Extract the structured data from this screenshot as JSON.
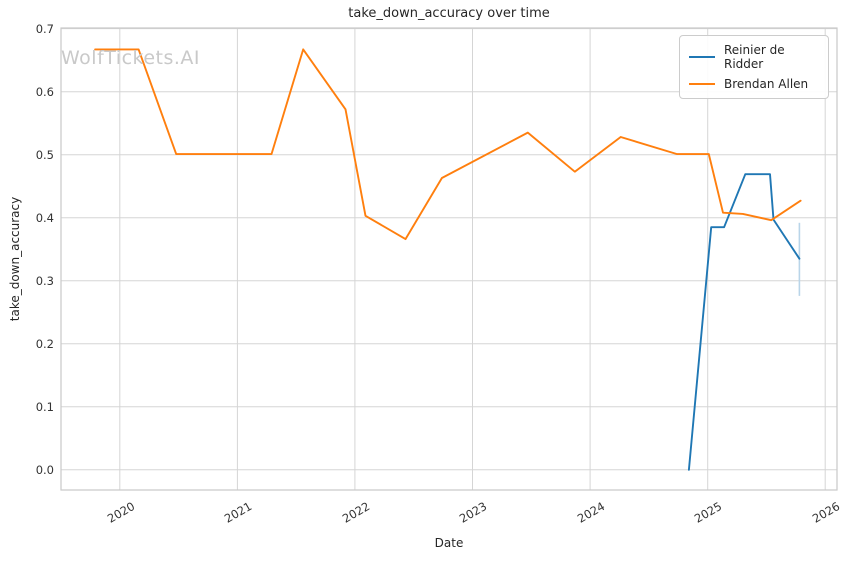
{
  "title": "take_down_accuracy over time",
  "watermark": "WolfTickets.AI",
  "chart_data": {
    "type": "line",
    "title": "take_down_accuracy over time",
    "xlabel": "Date",
    "ylabel": "take_down_accuracy",
    "grid": true,
    "legend_position": "upper right",
    "xlim": [
      2019.5,
      2026.1
    ],
    "ylim": [
      -0.032,
      0.701
    ],
    "xticks": [
      2020,
      2021,
      2022,
      2023,
      2024,
      2025,
      2026
    ],
    "yticks": [
      0.0,
      0.1,
      0.2,
      0.3,
      0.4,
      0.5,
      0.6,
      0.7
    ],
    "series": [
      {
        "name": "Reinier de Ridder",
        "color": "#1f77b4",
        "x": [
          2024.84,
          2025.03,
          2025.14,
          2025.32,
          2025.53,
          2025.56,
          2025.78
        ],
        "y": [
          0.0,
          0.385,
          0.385,
          0.469,
          0.469,
          0.397,
          0.335
        ]
      },
      {
        "name": "Brendan Allen",
        "color": "#ff7f0e",
        "x": [
          2019.79,
          2020.16,
          2020.48,
          2021.29,
          2021.56,
          2021.92,
          2022.09,
          2022.43,
          2022.74,
          2023.47,
          2023.87,
          2024.26,
          2024.74,
          2025.01,
          2025.13,
          2025.3,
          2025.54,
          2025.79
        ],
        "y": [
          0.667,
          0.667,
          0.501,
          0.501,
          0.667,
          0.572,
          0.403,
          0.366,
          0.463,
          0.535,
          0.473,
          0.528,
          0.501,
          0.501,
          0.408,
          0.406,
          0.396,
          0.427
        ]
      }
    ],
    "error_bar": {
      "series": "Reinier de Ridder",
      "x": 2025.78,
      "y_low": 0.276,
      "y_high": 0.392,
      "color": "#b9d5e9"
    },
    "colors": {
      "grid": "#d5d5d5",
      "frame": "#c9c9c9",
      "watermark": "#c9c9c9"
    }
  }
}
